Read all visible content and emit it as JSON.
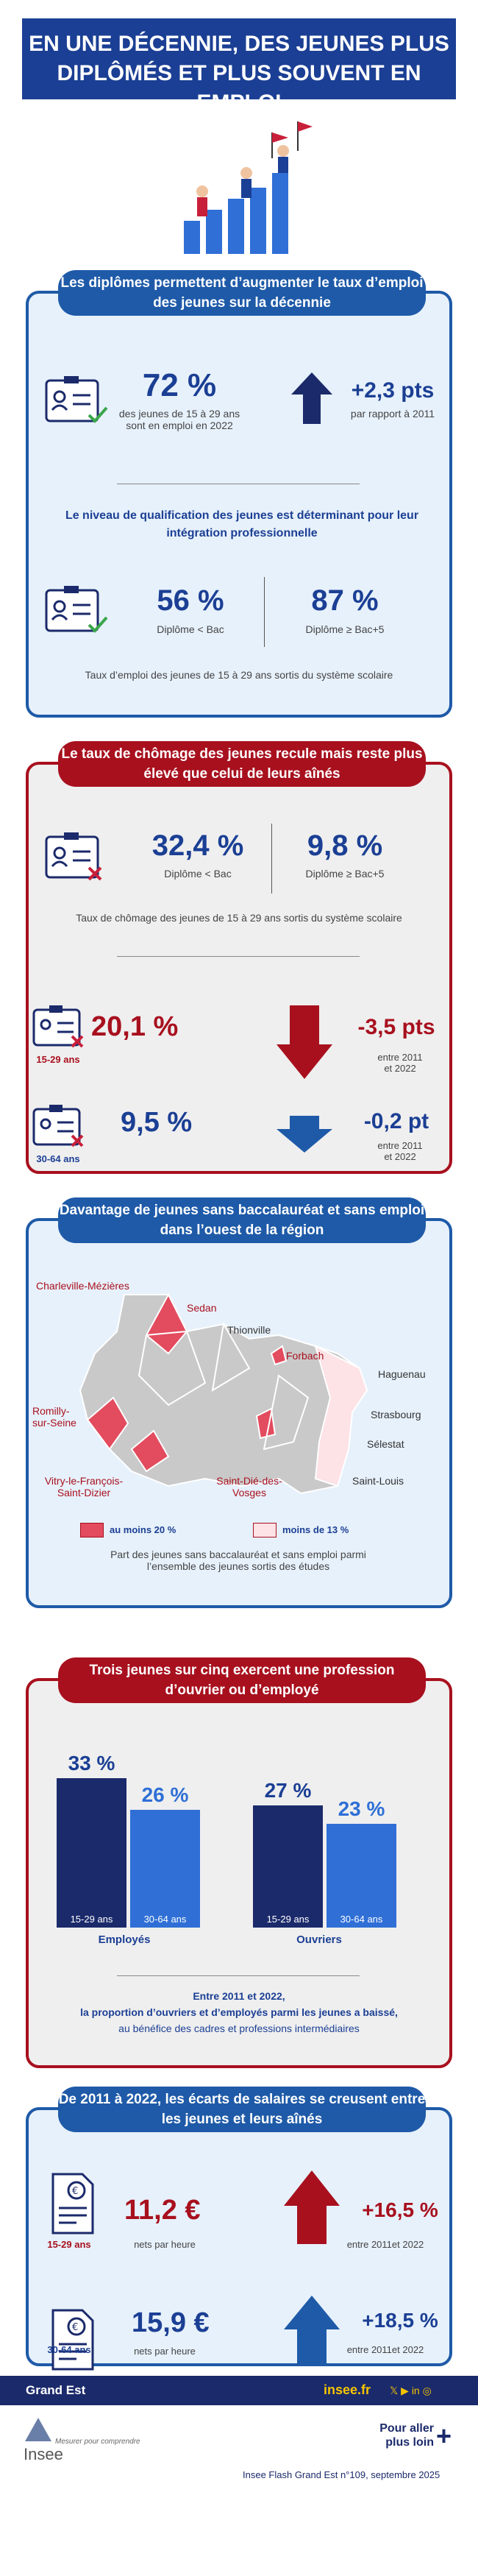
{
  "title": "EN UNE DÉCENNIE, DES JEUNES PLUS DIPLÔMÉS ET PLUS SOUVENT EN EMPLOI",
  "s1": {
    "heading": "Les diplômes permettent d’augmenter le taux d’emploi des jeunes sur la décennie",
    "rate": "72 %",
    "rate_desc": "des jeunes de 15 à 29 ans sont en emploi en 2022",
    "change": "+2,3 pts",
    "change_desc": "par rapport à 2011",
    "sub": "Le niveau de qualification des jeunes est déterminant pour leur intégration professionnelle",
    "v1": "56 %",
    "l1": "Diplôme < Bac",
    "v2": "87 %",
    "l2": "Diplôme ≥ Bac+5",
    "note": "Taux d’emploi des jeunes de 15 à 29 ans sortis du système scolaire"
  },
  "s2": {
    "heading": "Le taux de chômage des jeunes recule mais reste plus élevé que celui de leurs aînés",
    "v1": "32,4 %",
    "l1": "Diplôme < Bac",
    "v2": "9,8 %",
    "l2": "Diplôme ≥ Bac+5",
    "note": "Taux de chômage des jeunes de 15 à 29 ans sortis du système scolaire",
    "a_age": "15-29 ans",
    "a_val": "20,1 %",
    "a_chg": "-3,5 pts",
    "a_per": "entre 2011 et 2022",
    "b_age": "30-64 ans",
    "b_val": "9,5 %",
    "b_chg": "-0,2 pt",
    "b_per": "entre 2011 et 2022"
  },
  "s3": {
    "heading": "Davantage de jeunes sans baccalauréat et sans emploi dans l’ouest de la région",
    "cities": {
      "charleville": "Charleville-Mézières",
      "sedan": "Sedan",
      "thionville": "Thionville",
      "forbach": "Forbach",
      "haguenau": "Haguenau",
      "strasbourg": "Strasbourg",
      "selestat": "Sélestat",
      "romilly": "Romilly-sur-Seine",
      "vitry": "Vitry-le-François-Saint-Dizier",
      "saintdie": "Saint-Dié-des-Vosges",
      "saintlouis": "Saint-Louis"
    },
    "leg1": "au moins 20 %",
    "leg2": "moins de 13 %",
    "note": "Part des jeunes sans baccalauréat et sans emploi parmi l’ensemble des jeunes sortis des études",
    "color_high": "#e34b5e",
    "color_low": "#fde2e6"
  },
  "s4": {
    "heading": "Trois jeunes sur cinq exercent une profession d’ouvrier ou d’employé",
    "g1": "Employés",
    "g1a": "33 %",
    "g1b": "26 %",
    "g2": "Ouvriers",
    "g2a": "27 %",
    "g2b": "23 %",
    "age_young": "15-29 ans",
    "age_old": "30-64 ans",
    "note1": "Entre 2011 et 2022,",
    "note2": "la proportion d’ouvriers et d’employés parmi les jeunes a baissé,",
    "note3": "au bénéfice des cadres et professions intermédiaires"
  },
  "chart_data": {
    "type": "bar",
    "categories": [
      "Employés",
      "Ouvriers"
    ],
    "series": [
      {
        "name": "15-29 ans",
        "values": [
          33,
          27
        ]
      },
      {
        "name": "30-64 ans",
        "values": [
          26,
          23
        ]
      }
    ],
    "ylim": [
      0,
      35
    ]
  },
  "s5": {
    "heading": "De 2011 à 2022, les écarts de salaires se creusent entre les jeunes et leurs aînés",
    "a_age": "15-29 ans",
    "a_val": "11,2 €",
    "a_unit": "nets par heure",
    "a_chg": "+16,5 %",
    "a_per": "entre 2011et 2022",
    "b_age": "30-64 ans",
    "b_val": "15,9 €",
    "b_unit": "nets par heure",
    "b_chg": "+18,5 %",
    "b_per": "entre 2011et 2022"
  },
  "footer": {
    "region": "Grand Est",
    "site": "insee.fr",
    "logo": "Insee",
    "tagline": "Mesurer pour comprendre",
    "more": "Pour aller plus loin",
    "source": "Insee Flash Grand Est n°109, septembre 2025"
  }
}
